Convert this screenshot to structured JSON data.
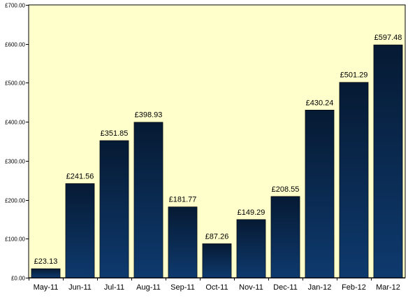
{
  "colors": {
    "plot_background": "#FFFFCC",
    "bar_top": "#061A33",
    "bar_bottom": "#0E3A6E",
    "axis": "#000000",
    "gridline": "#000000"
  },
  "chart_data": {
    "type": "bar",
    "categories": [
      "May-11",
      "Jun-11",
      "Jul-11",
      "Aug-11",
      "Sep-11",
      "Oct-11",
      "Nov-11",
      "Dec-11",
      "Jan-12",
      "Feb-12",
      "Mar-12"
    ],
    "values": [
      23.13,
      241.56,
      351.85,
      398.93,
      181.77,
      87.26,
      149.29,
      208.55,
      430.24,
      501.29,
      597.48
    ],
    "data_labels": [
      "£23.13",
      "£241.56",
      "£351.85",
      "£398.93",
      "£181.77",
      "£87.26",
      "£149.29",
      "£208.55",
      "£430.24",
      "£501.29",
      "£597.48"
    ],
    "y_ticks": [
      0,
      100,
      200,
      300,
      400,
      500,
      600,
      700
    ],
    "y_tick_labels": [
      "£0.00",
      "£100.00",
      "£200.00",
      "£300.00",
      "£400.00",
      "£500.00",
      "£600.00",
      "£700.00"
    ],
    "ylim": [
      0,
      700
    ],
    "grid": false,
    "legend": "none",
    "title": "",
    "xlabel": "",
    "ylabel": ""
  }
}
